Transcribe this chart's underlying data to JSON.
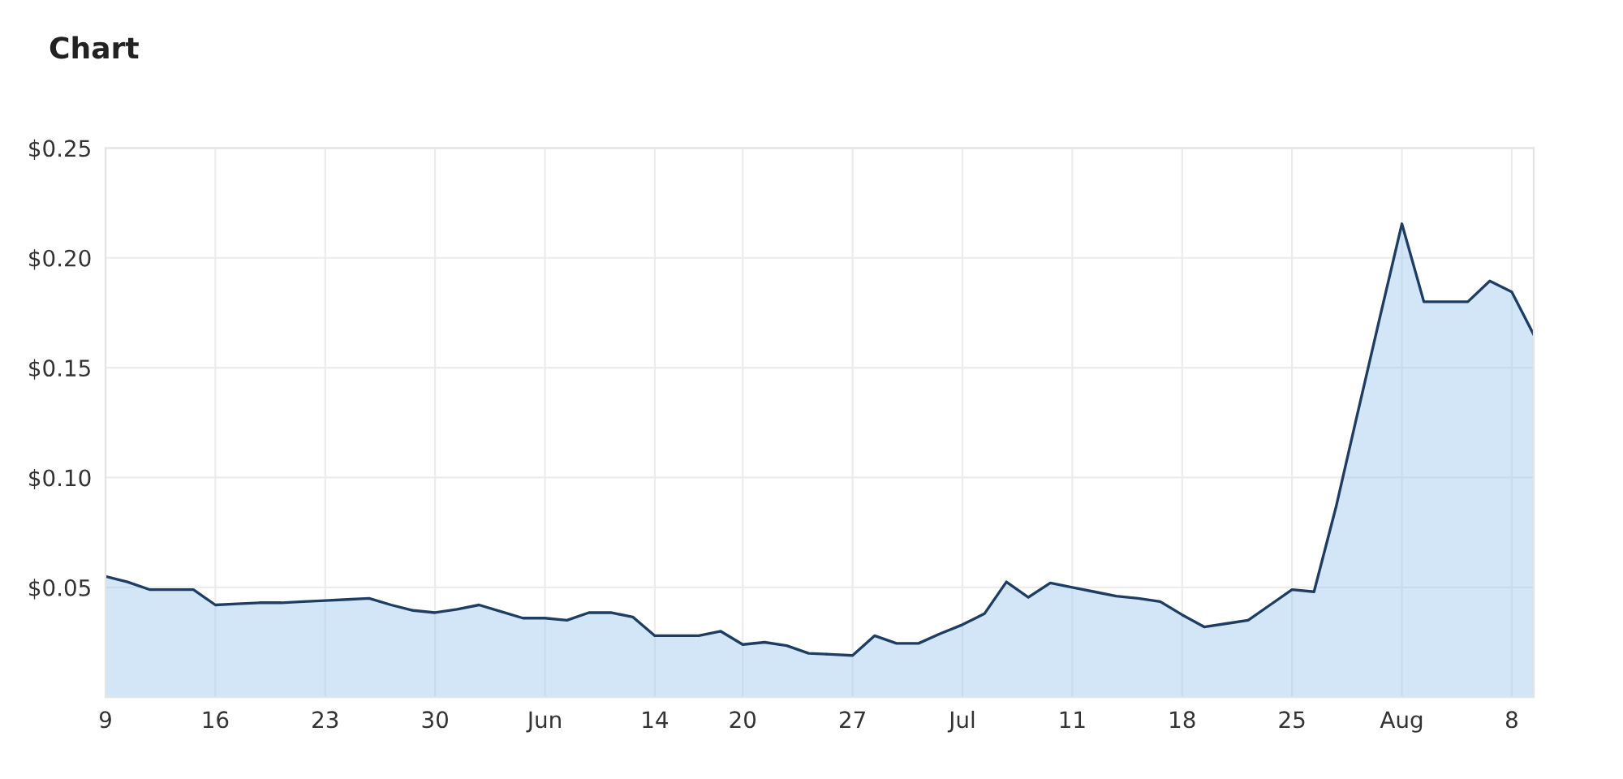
{
  "chart_data": {
    "type": "area",
    "title": "Chart",
    "categories": [
      "9",
      null,
      null,
      null,
      null,
      "16",
      null,
      null,
      null,
      null,
      "23",
      null,
      null,
      null,
      null,
      "30",
      null,
      null,
      null,
      null,
      "Jun",
      null,
      null,
      null,
      null,
      "14",
      null,
      null,
      null,
      "20",
      null,
      null,
      null,
      null,
      "27",
      null,
      null,
      null,
      null,
      "Jul",
      null,
      null,
      null,
      null,
      "11",
      null,
      null,
      null,
      null,
      "18",
      null,
      null,
      null,
      null,
      "25",
      null,
      null,
      null,
      null,
      "Aug",
      null,
      null,
      null,
      null,
      "8",
      null
    ],
    "series": [
      {
        "color": "#1e3d62",
        "values": [
          0.055,
          0.0525,
          0.049,
          0.049,
          0.049,
          0.042,
          0.0425,
          0.043,
          0.043,
          0.0435,
          0.044,
          0.0445,
          0.045,
          0.042,
          0.0395,
          0.0385,
          0.04,
          0.042,
          0.039,
          0.036,
          0.036,
          0.035,
          0.0385,
          0.0385,
          0.0365,
          0.028,
          0.028,
          0.028,
          0.03,
          0.024,
          0.025,
          0.0235,
          0.02,
          0.0195,
          0.019,
          0.028,
          0.0245,
          0.0245,
          0.029,
          0.033,
          0.038,
          0.0525,
          0.0455,
          0.052,
          0.05,
          0.048,
          0.046,
          0.045,
          0.0435,
          0.0375,
          0.032,
          0.0335,
          0.035,
          0.042,
          0.049,
          0.048,
          0.0865,
          0.13,
          0.173,
          0.2155,
          0.18,
          0.18,
          0.18,
          0.1895,
          0.1845,
          0.165
        ]
      }
    ],
    "ylim": [
      0,
      0.25
    ],
    "yticks": [
      {
        "value": 0.05,
        "label": "$0.05"
      },
      {
        "value": 0.1,
        "label": "$0.10"
      },
      {
        "value": 0.15,
        "label": "$0.15"
      },
      {
        "value": 0.2,
        "label": "$0.20"
      },
      {
        "value": 0.25,
        "label": "$0.25"
      }
    ],
    "grid": true
  }
}
